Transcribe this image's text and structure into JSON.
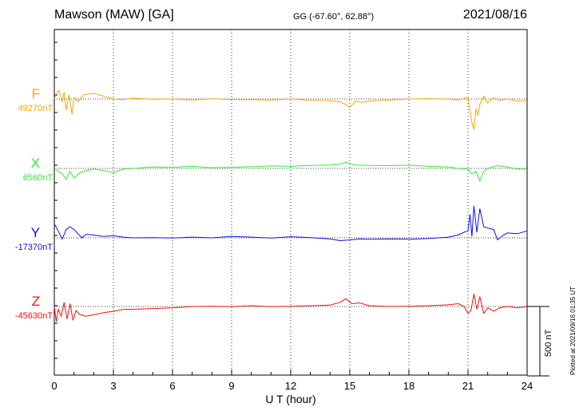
{
  "header": {
    "station": "Mawson (MAW)  [GA]",
    "coords": "GG (-67.60°,  62.88°)",
    "date": "2021/08/16"
  },
  "footer": {
    "plotted": "Plotted at 2021/09/16 01:35 UT"
  },
  "chart_data": {
    "type": "line",
    "xlabel": "U T (hour)",
    "xlim": [
      0,
      24
    ],
    "x_ticks": [
      "0",
      "3",
      "6",
      "9",
      "12",
      "15",
      "18",
      "21",
      "24"
    ],
    "grid": true,
    "scale_bar": {
      "label": "500 nT",
      "value_nT": 500
    },
    "series": [
      {
        "name": "F",
        "baseline_label": "49270nT",
        "baseline": 49270,
        "color": "#f5a800",
        "x": [
          0,
          0.1,
          0.25,
          0.4,
          0.5,
          0.6,
          0.75,
          0.9,
          1.0,
          1.2,
          1.5,
          2.0,
          2.5,
          3.0,
          3.5,
          4,
          5,
          6,
          7,
          8,
          9,
          10,
          11,
          12,
          13,
          14,
          14.5,
          14.8,
          15.0,
          15.3,
          15.6,
          16,
          17,
          18,
          19,
          20,
          20.5,
          21.0,
          21.1,
          21.2,
          21.3,
          21.4,
          21.5,
          21.6,
          21.8,
          22.0,
          22.3,
          22.6,
          23.0,
          23.5,
          24
        ],
        "values": [
          49270,
          49310,
          49330,
          49250,
          49320,
          49190,
          49300,
          49160,
          49280,
          49250,
          49300,
          49310,
          49290,
          49270,
          49265,
          49275,
          49268,
          49270,
          49262,
          49272,
          49266,
          49265,
          49262,
          49270,
          49260,
          49258,
          49250,
          49230,
          49210,
          49255,
          49245,
          49255,
          49262,
          49270,
          49272,
          49270,
          49262,
          49285,
          49180,
          49100,
          49050,
          49200,
          49150,
          49230,
          49290,
          49240,
          49280,
          49260,
          49270,
          49255,
          49255
        ]
      },
      {
        "name": "X",
        "baseline_label": "6560nT",
        "baseline": 6560,
        "color": "#33ee33",
        "x": [
          0,
          0.2,
          0.4,
          0.6,
          0.8,
          1.0,
          1.3,
          1.6,
          2.0,
          2.5,
          3.0,
          3.5,
          4,
          5,
          6,
          7,
          8,
          9,
          10,
          11,
          12,
          13,
          14,
          14.5,
          14.8,
          15.2,
          16,
          17,
          18,
          19,
          20,
          20.5,
          21.0,
          21.2,
          21.4,
          21.6,
          21.8,
          22.0,
          22.5,
          23,
          23.5,
          24
        ],
        "values": [
          6560,
          6540,
          6520,
          6480,
          6540,
          6490,
          6530,
          6545,
          6555,
          6545,
          6530,
          6555,
          6560,
          6570,
          6568,
          6575,
          6565,
          6568,
          6572,
          6578,
          6575,
          6582,
          6585,
          6590,
          6605,
          6585,
          6582,
          6580,
          6583,
          6575,
          6570,
          6560,
          6555,
          6520,
          6540,
          6470,
          6540,
          6560,
          6580,
          6570,
          6555,
          6555
        ]
      },
      {
        "name": "Y",
        "baseline_label": "-17370nT",
        "baseline": -17370,
        "color": "#1010dd",
        "x": [
          0,
          0.2,
          0.4,
          0.6,
          0.8,
          1.0,
          1.2,
          1.4,
          1.6,
          2.0,
          2.5,
          3.0,
          3.5,
          4,
          5,
          6,
          7,
          8,
          9,
          10,
          11,
          12,
          13,
          14,
          14.5,
          15,
          15.5,
          16,
          17,
          18,
          19,
          20,
          20.5,
          20.8,
          21.0,
          21.1,
          21.2,
          21.3,
          21.45,
          21.6,
          21.8,
          22.0,
          22.3,
          22.5,
          22.8,
          23,
          23.5,
          24
        ],
        "values": [
          -17270,
          -17320,
          -17380,
          -17310,
          -17290,
          -17310,
          -17340,
          -17370,
          -17345,
          -17350,
          -17360,
          -17355,
          -17365,
          -17370,
          -17368,
          -17372,
          -17365,
          -17370,
          -17360,
          -17365,
          -17372,
          -17362,
          -17368,
          -17378,
          -17390,
          -17385,
          -17378,
          -17380,
          -17378,
          -17380,
          -17375,
          -17365,
          -17350,
          -17330,
          -17320,
          -17200,
          -17360,
          -17140,
          -17330,
          -17160,
          -17290,
          -17300,
          -17310,
          -17385,
          -17350,
          -17335,
          -17340,
          -17320
        ]
      },
      {
        "name": "Z",
        "baseline_label": "-45630nT",
        "baseline": -45630,
        "color": "#ee1111",
        "x": [
          0,
          0.1,
          0.2,
          0.35,
          0.5,
          0.65,
          0.8,
          0.95,
          1.1,
          1.3,
          1.6,
          2.0,
          2.5,
          3.0,
          3.5,
          4,
          5,
          6,
          7,
          8,
          9,
          10,
          11,
          12,
          13,
          14,
          14.5,
          14.8,
          15.1,
          15.5,
          16,
          17,
          18,
          19,
          20,
          20.5,
          20.8,
          21.0,
          21.15,
          21.3,
          21.45,
          21.6,
          21.8,
          22.0,
          22.3,
          22.6,
          23,
          23.5,
          24
        ],
        "values": [
          -45630,
          -45740,
          -45650,
          -45700,
          -45600,
          -45720,
          -45610,
          -45730,
          -45660,
          -45690,
          -45700,
          -45690,
          -45675,
          -45665,
          -45650,
          -45650,
          -45645,
          -45640,
          -45630,
          -45628,
          -45632,
          -45625,
          -45632,
          -45628,
          -45625,
          -45620,
          -45600,
          -45575,
          -45610,
          -45605,
          -45625,
          -45630,
          -45628,
          -45625,
          -45618,
          -45610,
          -45630,
          -45680,
          -45660,
          -45540,
          -45650,
          -45560,
          -45680,
          -45640,
          -45665,
          -45640,
          -45630,
          -45640,
          -45630
        ]
      }
    ]
  }
}
